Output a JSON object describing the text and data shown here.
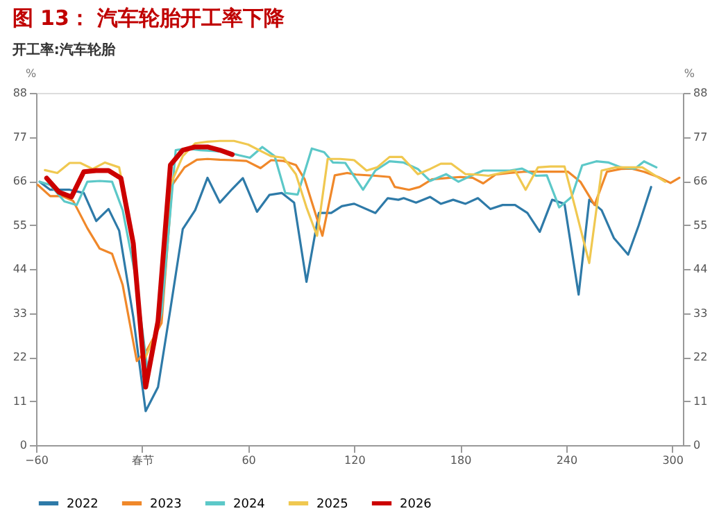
{
  "chart_data": {
    "type": "line",
    "title": "图 13：   汽车轮胎开工率下降",
    "subtitle": "开工率:汽车轮胎",
    "ylabel": "%",
    "y2label": "%",
    "xlim": [
      -60,
      306
    ],
    "xticks": [
      -60,
      {
        "value": 0,
        "label": "春节"
      },
      60,
      120,
      180,
      240,
      300
    ],
    "ylim": [
      0,
      88
    ],
    "yticks": [
      0,
      11,
      22,
      33,
      44,
      55,
      66,
      77,
      88
    ],
    "y2lim": [
      0,
      88
    ],
    "y2ticks": [
      0,
      11,
      22,
      33,
      44,
      55,
      66,
      77,
      88
    ],
    "grid": false,
    "legend": "bottom",
    "marker": "none",
    "line_style": "solid",
    "series": [
      {
        "name": "2022",
        "color": "#2e7aa8",
        "x": [
          -58,
          -52,
          -41,
          -33,
          -26,
          -19,
          -13,
          -5,
          2,
          9,
          16,
          23,
          30,
          37,
          44,
          51,
          57,
          65,
          72,
          79,
          86,
          93,
          100,
          107,
          113,
          120,
          132,
          139,
          145,
          148,
          155,
          163,
          169,
          176,
          183,
          190,
          197,
          204,
          211,
          218,
          225,
          232,
          239,
          247,
          253,
          260,
          267,
          275,
          281,
          288
        ],
        "values": [
          65.8,
          63.8,
          63.8,
          63,
          56,
          59,
          53.6,
          32,
          8.5,
          14.5,
          34,
          54,
          58.7,
          66.8,
          60.6,
          64,
          66.7,
          58.3,
          62.5,
          63,
          60.6,
          40.8,
          58,
          58,
          59.7,
          60.3,
          58,
          61.7,
          61.3,
          61.7,
          60.6,
          62,
          60.3,
          61.3,
          60.3,
          61.7,
          59,
          60,
          60,
          58,
          53.3,
          61.3,
          60.3,
          37.6,
          61.3,
          58.7,
          51.7,
          47.6,
          54.9,
          64.5
        ]
      },
      {
        "name": "2023",
        "color": "#f0882a",
        "x": [
          -59,
          -52,
          -45,
          -39,
          -31,
          -24,
          -17,
          -11,
          -3,
          3,
          11,
          17,
          24,
          31,
          37,
          44,
          51,
          59,
          67,
          73,
          80,
          87,
          92,
          102,
          109,
          116,
          121,
          132,
          140,
          143,
          151,
          157,
          164,
          172,
          180,
          187,
          193,
          200,
          208,
          216,
          224,
          232,
          241,
          248,
          256,
          263,
          271,
          277,
          284,
          292,
          299,
          304
        ],
        "values": [
          65,
          62.2,
          62.2,
          61,
          54.2,
          49.1,
          47.8,
          40,
          21,
          24,
          30.5,
          65,
          69.4,
          71.3,
          71.5,
          71.3,
          71.2,
          71,
          69.2,
          71.2,
          71,
          70,
          66.4,
          52.3,
          67.4,
          68,
          67.6,
          67.3,
          67,
          64.5,
          63.8,
          64.5,
          66.4,
          66.7,
          67,
          66.8,
          65.4,
          67.6,
          68,
          68.3,
          68.3,
          68.3,
          68.3,
          65.8,
          60,
          68.3,
          69,
          69.1,
          68.3,
          67,
          65.5,
          66.8
        ]
      },
      {
        "name": "2024",
        "color": "#5cc8c8",
        "x": [
          -58,
          -52,
          -44,
          -37,
          -31,
          -24,
          -17,
          -11,
          -4,
          3,
          11,
          19,
          25,
          33,
          40,
          48,
          55,
          61,
          68,
          75,
          81,
          88,
          96,
          103,
          108,
          115,
          125,
          132,
          140,
          148,
          156,
          163,
          172,
          179,
          186,
          193,
          201,
          208,
          215,
          223,
          229,
          236,
          243,
          249,
          257,
          264,
          271,
          279,
          284,
          291
        ],
        "values": [
          65.8,
          65,
          60.9,
          60,
          65.8,
          66,
          65.8,
          58.7,
          42.7,
          19,
          33,
          73.7,
          74.1,
          73.7,
          73.5,
          73.2,
          72.4,
          71.8,
          74.5,
          72.2,
          63,
          62.6,
          74.1,
          73.2,
          70.6,
          70.5,
          63.8,
          68.6,
          70.9,
          70.6,
          69,
          66,
          67.7,
          65.8,
          67.3,
          68.6,
          68.6,
          68.6,
          69.1,
          67.3,
          67.4,
          59.4,
          62,
          69.9,
          70.9,
          70.6,
          69.4,
          69.1,
          70.9,
          69.4
        ]
      },
      {
        "name": "2025",
        "color": "#f0c850",
        "x": [
          -55,
          -48,
          -41,
          -35,
          -28,
          -21,
          -13,
          -5,
          1,
          9,
          16,
          23,
          30,
          37,
          44,
          52,
          60,
          67,
          73,
          80,
          87,
          93,
          99,
          105,
          112,
          120,
          127,
          133,
          140,
          147,
          156,
          163,
          169,
          175,
          183,
          189,
          196,
          203,
          211,
          217,
          224,
          231,
          239,
          245,
          253,
          260,
          268,
          275,
          283,
          289,
          296
        ],
        "values": [
          68.7,
          68,
          70.5,
          70.5,
          69,
          70.6,
          69.4,
          51.7,
          21,
          29.2,
          65,
          72.2,
          75.4,
          75.8,
          76,
          76,
          75.1,
          73.5,
          72.2,
          71.8,
          67.7,
          59.4,
          52.3,
          71.5,
          71.5,
          71.2,
          68.6,
          69.4,
          72,
          72,
          67.7,
          69,
          70.3,
          70.3,
          67.7,
          67.6,
          67.3,
          68,
          68.6,
          63.8,
          69.4,
          69.6,
          69.6,
          59.4,
          45.5,
          68.6,
          69.4,
          69.4,
          69.4,
          67.7,
          65.8
        ]
      },
      {
        "name": "2026",
        "color": "#cc0000",
        "x": [
          -54,
          -47,
          -40,
          -33,
          -26,
          -19,
          -12,
          -5,
          2,
          9,
          16,
          23,
          30,
          37,
          44,
          51
        ],
        "values": [
          66.7,
          63.2,
          62,
          68.3,
          68.6,
          68.6,
          66.7,
          50.4,
          14.5,
          31,
          70,
          73.7,
          74.5,
          74.5,
          73.7,
          72.6
        ]
      }
    ]
  }
}
